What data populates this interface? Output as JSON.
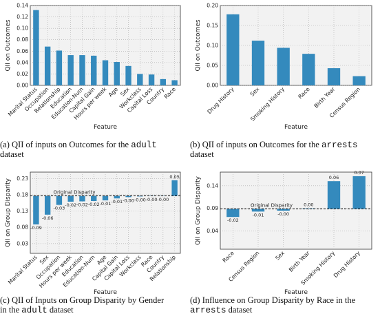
{
  "chart_data": [
    {
      "type": "bar",
      "ylabel": "QII on Outcomes",
      "xlabel": "Feature",
      "categories": [
        "Marital Status",
        "Occupation",
        "Relationship",
        "Education",
        "Education-Num",
        "Capital Gain",
        "Hours per week",
        "Age",
        "Sex",
        "Workclass",
        "Capital Loss",
        "Country",
        "Race"
      ],
      "values": [
        0.132,
        0.068,
        0.061,
        0.053,
        0.053,
        0.052,
        0.044,
        0.041,
        0.034,
        0.02,
        0.019,
        0.011,
        0.009
      ],
      "color": "#348abd",
      "grid": true,
      "ylim": [
        0,
        0.14
      ],
      "yticks": [
        {
          "value": 0,
          "label": "0.00"
        },
        {
          "value": 0.02,
          "label": "0.02"
        },
        {
          "value": 0.04,
          "label": "0.04"
        },
        {
          "value": 0.06,
          "label": "0.06"
        },
        {
          "value": 0.08,
          "label": "0.08"
        },
        {
          "value": 0.1,
          "label": "0.10"
        },
        {
          "value": 0.12,
          "label": "0.12"
        },
        {
          "value": 0.14,
          "label": "0.14"
        }
      ],
      "caption": [
        [
          {
            "text": "(a) QII of inputs on Outcomes for the "
          },
          {
            "text": "adult",
            "mono": true
          }
        ],
        [
          {
            "text": "dataset"
          }
        ]
      ]
    },
    {
      "type": "bar",
      "ylabel": "QII on Outcomes",
      "xlabel": "Feature",
      "categories": [
        "Drug History",
        "Sex",
        "Smoking History",
        "Race",
        "Birth Year",
        "Census Region"
      ],
      "values": [
        0.178,
        0.112,
        0.094,
        0.079,
        0.043,
        0.023
      ],
      "color": "#348abd",
      "grid": true,
      "ylim": [
        0,
        0.2
      ],
      "yticks": [
        {
          "value": 0,
          "label": "0.00"
        },
        {
          "value": 0.05,
          "label": "0.05"
        },
        {
          "value": 0.1,
          "label": "0.10"
        },
        {
          "value": 0.15,
          "label": "0.15"
        },
        {
          "value": 0.2,
          "label": "0.20"
        }
      ],
      "caption": [
        [
          {
            "text": "(b) QII of inputs on Outcomes for the "
          },
          {
            "text": "arrests",
            "mono": true
          }
        ],
        [
          {
            "text": "dataset"
          }
        ]
      ]
    },
    {
      "type": "bar",
      "ylabel": "QII on Group Disparity",
      "xlabel": "Feature",
      "baseline": 0.177,
      "baseline_label": "Original Disparity",
      "categories": [
        "Marital Status",
        "Sex",
        "Occupation",
        "Hours per week",
        "Education",
        "Education-Num",
        "Age",
        "Capital Gain",
        "Capital Loss",
        "Workclass",
        "Race",
        "Country",
        "Relationship"
      ],
      "values": [
        -0.088,
        -0.058,
        -0.028,
        -0.018,
        -0.017,
        -0.016,
        -0.014,
        -0.008,
        -0.004,
        -0.002,
        -0.001,
        -0.001,
        0.048
      ],
      "value_labels": [
        "-0.09",
        "-0.06",
        "-0.03",
        "-0.02",
        "-0.02",
        "-0.02",
        "-0.01",
        "-0.01",
        "-0.00",
        "-0.00",
        "-0.00",
        "-0.00",
        "0.05"
      ],
      "color": "#348abd",
      "grid": true,
      "ylim": [
        0,
        0.25
      ],
      "yticks": [
        0.03,
        0.08,
        0.13,
        0.18,
        0.23
      ],
      "caption": [
        [
          {
            "text": "(c) QII of Inputs on Group Disparity by Gender"
          }
        ],
        [
          {
            "text": "in the "
          },
          {
            "text": "adult",
            "mono": true
          },
          {
            "text": " dataset"
          }
        ]
      ]
    },
    {
      "type": "bar",
      "ylabel": "QII on Group Disparity",
      "xlabel": "Feature",
      "baseline": 0.089,
      "baseline_label": "Original Disparity",
      "categories": [
        "Race",
        "Census Region",
        "Sex",
        "Birth Year",
        "Smoking History",
        "Drug History"
      ],
      "values": [
        -0.018,
        -0.006,
        -0.004,
        0.001,
        0.061,
        0.072
      ],
      "value_labels": [
        "-0.02",
        "-0.01",
        "-0.00",
        "0.00",
        "0.06",
        "0.07"
      ],
      "color": "#348abd",
      "grid": true,
      "ylim": [
        0,
        0.17
      ],
      "yticks": [
        0.04,
        0.09,
        0.14
      ],
      "caption": [
        [
          {
            "text": "(d) Influence on Group Disparity by Race in the"
          }
        ],
        [
          {
            "text": "arrests",
            "mono": true
          },
          {
            "text": " dataset"
          }
        ]
      ]
    }
  ]
}
